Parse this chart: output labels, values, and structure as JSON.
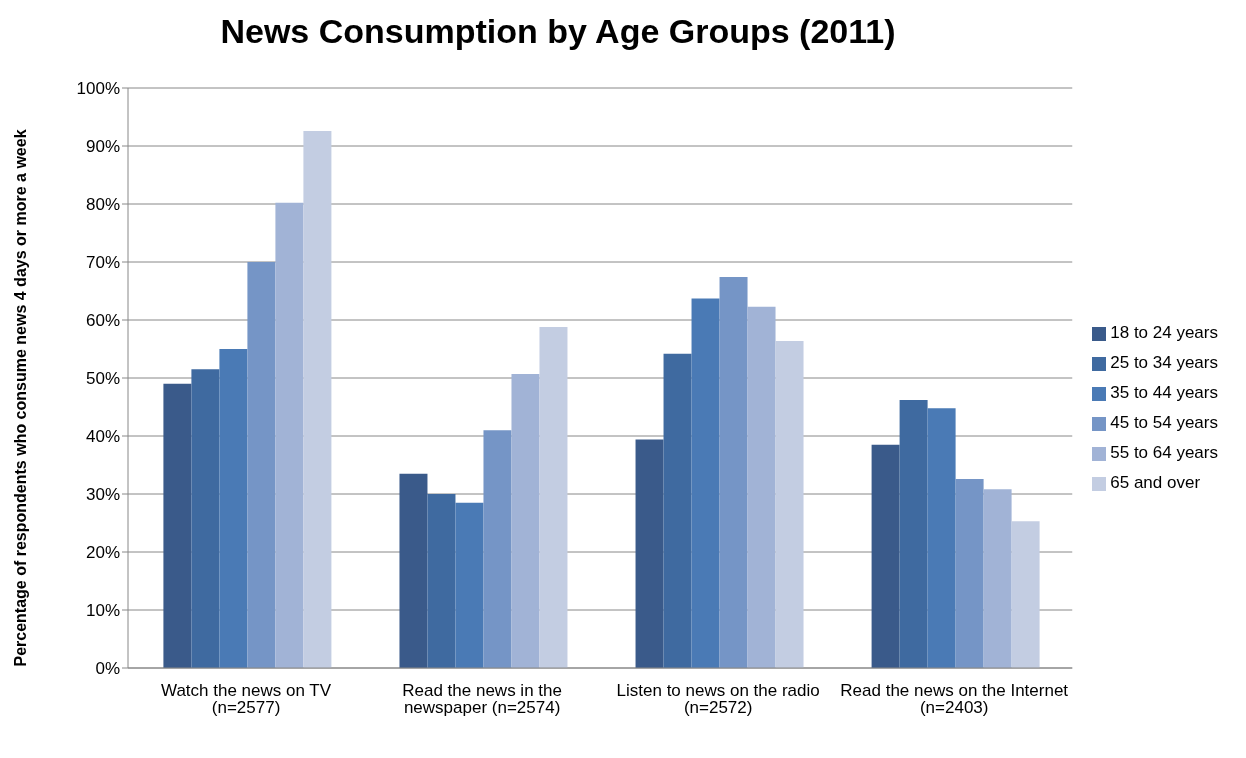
{
  "chart_data": {
    "type": "bar",
    "title": "News Consumption by Age Groups (2011)",
    "ylabel": "Percentage of respondents who consume news  4 days or more a week",
    "categories": [
      "Watch the news on TV (n=2577)",
      "Read the news in the newspaper (n=2574)",
      "Listen to news on the radio (n=2572)",
      "Read the news on the Internet (n=2403)"
    ],
    "series": [
      {
        "name": "18 to 24 years",
        "color": "#3a5a8a",
        "values": [
          49,
          33.5,
          39.4,
          38.5
        ]
      },
      {
        "name": "25 to 34 years",
        "color": "#3f6aa0",
        "values": [
          51.5,
          30,
          54.2,
          46.2
        ]
      },
      {
        "name": "35 to 44 years",
        "color": "#4a7ab5",
        "values": [
          55,
          28.5,
          63.7,
          44.8
        ]
      },
      {
        "name": "45 to 54 years",
        "color": "#7595c6",
        "values": [
          70,
          41,
          67.4,
          32.6
        ]
      },
      {
        "name": "55 to 64 years",
        "color": "#a1b3d6",
        "values": [
          80.2,
          50.7,
          62.3,
          30.8
        ]
      },
      {
        "name": "65 and over",
        "color": "#c3cde2",
        "values": [
          92.6,
          58.8,
          56.4,
          25.3
        ]
      }
    ],
    "ylim": [
      0,
      100
    ],
    "yticks": [
      {
        "value": 0,
        "label": "0%"
      },
      {
        "value": 10,
        "label": "10%"
      },
      {
        "value": 20,
        "label": "20%"
      },
      {
        "value": 30,
        "label": "30%"
      },
      {
        "value": 40,
        "label": "40%"
      },
      {
        "value": 50,
        "label": "50%"
      },
      {
        "value": 60,
        "label": "60%"
      },
      {
        "value": 70,
        "label": "70%"
      },
      {
        "value": 80,
        "label": "80%"
      },
      {
        "value": 90,
        "label": "90%"
      },
      {
        "value": 100,
        "label": "100%"
      }
    ],
    "grid": "y",
    "legend": "right"
  }
}
